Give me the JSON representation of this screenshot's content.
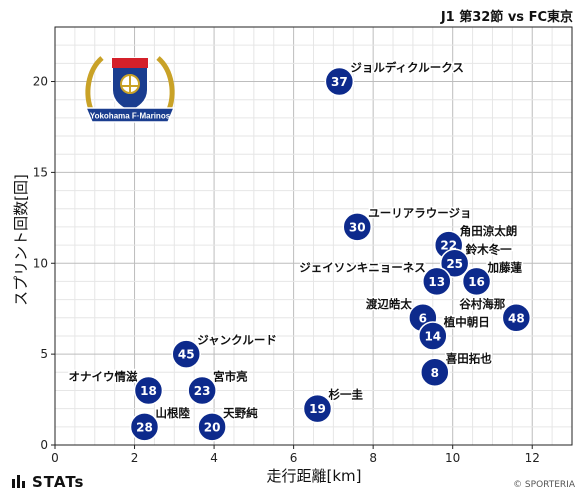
{
  "header": {
    "title": "J1 第32節 vs FC東京"
  },
  "footer": {
    "brand": "STATs",
    "copyright": "© SPORTERIA"
  },
  "emblem": {
    "name": "club-emblem",
    "text": "Yokohama F·Marinos"
  },
  "colors": {
    "marker": "#0d2a8c",
    "marker_stroke": "#ffffff",
    "grid": "#cfcfcf"
  },
  "chart_data": {
    "type": "scatter",
    "xlabel": "走行距離[km]",
    "ylabel": "スプリント回数[回]",
    "xlim": [
      0,
      13
    ],
    "ylim": [
      0,
      23
    ],
    "xticks": [
      0,
      2,
      4,
      6,
      8,
      10,
      12
    ],
    "yticks": [
      0,
      5,
      10,
      15,
      20
    ],
    "grid": true,
    "points": [
      {
        "number": "37",
        "name": "ジョルディクルークス",
        "x": 7.15,
        "y": 20,
        "label_pos": "right-up"
      },
      {
        "number": "30",
        "name": "ユーリアラウージョ",
        "x": 7.6,
        "y": 12,
        "label_pos": "right-up"
      },
      {
        "number": "22",
        "name": "角田涼太朗",
        "x": 9.9,
        "y": 11,
        "label_pos": "right-up"
      },
      {
        "number": "25",
        "name": "鈴木冬一",
        "x": 10.05,
        "y": 10,
        "label_pos": "right-up"
      },
      {
        "number": "13",
        "name": "ジェイソンキニョーネス",
        "x": 9.6,
        "y": 9,
        "label_pos": "left-up"
      },
      {
        "number": "16",
        "name": "加藤蓮",
        "x": 10.6,
        "y": 9,
        "label_pos": "right-up"
      },
      {
        "number": "6",
        "name": "渡辺皓太",
        "x": 9.25,
        "y": 7,
        "label_pos": "left-up"
      },
      {
        "number": "48",
        "name": "谷村海那",
        "x": 11.6,
        "y": 7,
        "label_pos": "left-up"
      },
      {
        "number": "14",
        "name": "植中朝日",
        "x": 9.5,
        "y": 6,
        "label_pos": "right-up"
      },
      {
        "number": "45",
        "name": "ジャンクルード",
        "x": 3.3,
        "y": 5,
        "label_pos": "right-up"
      },
      {
        "number": "8",
        "name": "喜田拓也",
        "x": 9.55,
        "y": 4,
        "label_pos": "right-up"
      },
      {
        "number": "18",
        "name": "オナイウ情滋",
        "x": 2.35,
        "y": 3,
        "label_pos": "left-up"
      },
      {
        "number": "23",
        "name": "宮市亮",
        "x": 3.7,
        "y": 3,
        "label_pos": "right-up"
      },
      {
        "number": "19",
        "name": "杉一圭",
        "x": 6.6,
        "y": 2,
        "label_pos": "right-up"
      },
      {
        "number": "28",
        "name": "山根陸",
        "x": 2.25,
        "y": 1,
        "label_pos": "right-up"
      },
      {
        "number": "20",
        "name": "天野純",
        "x": 3.95,
        "y": 1,
        "label_pos": "right-up"
      }
    ]
  }
}
